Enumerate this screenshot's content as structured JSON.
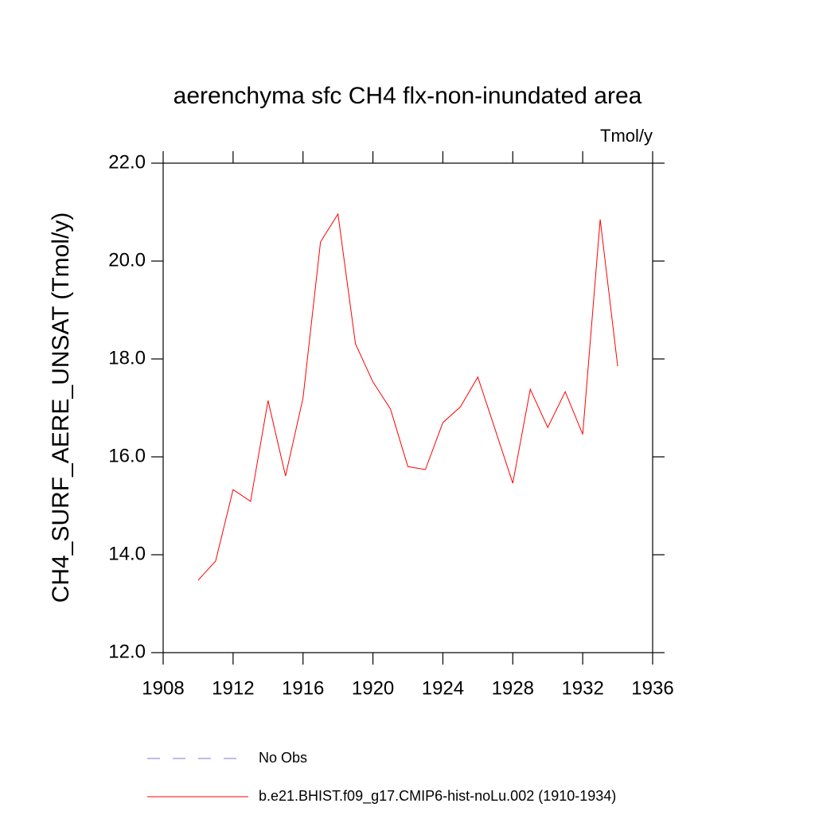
{
  "chart_data": {
    "type": "line",
    "title": "aerenchyma sfc CH4 flx-non-inundated area",
    "units": "Tmol/y",
    "ylabel": "CH4_SURF_AERE_UNSAT  (Tmol/y)",
    "x": [
      1910,
      1911,
      1912,
      1913,
      1914,
      1915,
      1916,
      1917,
      1918,
      1919,
      1920,
      1921,
      1922,
      1923,
      1924,
      1925,
      1926,
      1927,
      1928,
      1929,
      1930,
      1931,
      1932,
      1933,
      1934
    ],
    "series": [
      {
        "name": "b.e21.BHIST.f09_g17.CMIP6-hist-noLu.002 (1910-1934)",
        "color": "#ff0000",
        "values": [
          13.48,
          13.87,
          15.33,
          15.09,
          17.15,
          15.61,
          17.2,
          20.39,
          20.96,
          18.31,
          17.53,
          16.98,
          15.8,
          15.74,
          16.7,
          17.02,
          17.63,
          16.55,
          15.46,
          17.38,
          16.6,
          17.33,
          16.46,
          20.85,
          17.85
        ]
      }
    ],
    "reference_line": {
      "name": "No Obs",
      "color": "#7b7bd6",
      "dashed": true
    },
    "xlim": [
      1908,
      1936
    ],
    "xticks": [
      1908,
      1912,
      1916,
      1920,
      1924,
      1928,
      1932,
      1936
    ],
    "ylim": [
      12,
      22
    ],
    "yticks": [
      {
        "value": 12,
        "label": "12.0"
      },
      {
        "value": 14,
        "label": "14.0"
      },
      {
        "value": 16,
        "label": "16.0"
      },
      {
        "value": 18,
        "label": "18.0"
      },
      {
        "value": 20,
        "label": "20.0"
      },
      {
        "value": 22,
        "label": "22.0"
      }
    ]
  }
}
